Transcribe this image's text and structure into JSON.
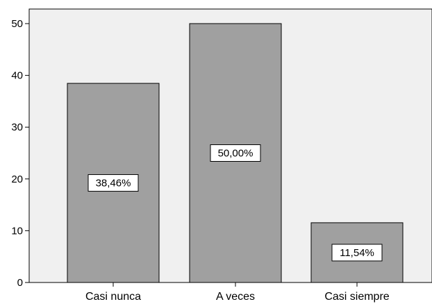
{
  "chart_data": {
    "type": "bar",
    "categories": [
      "Casi nunca",
      "A veces",
      "Casi siempre"
    ],
    "values": [
      38.46,
      50.0,
      11.54
    ],
    "data_labels": [
      "38,46%",
      "50,00%",
      "11,54%"
    ],
    "y_ticks": [
      "0",
      "10",
      "20",
      "30",
      "40",
      "50"
    ],
    "ylim": [
      0,
      50
    ],
    "title": "",
    "xlabel": "",
    "ylabel": "",
    "grid": false,
    "colors": {
      "plot_background": "#f0f0f0",
      "bar_fill": "#a0a0a0",
      "bar_stroke": "#000000"
    }
  }
}
